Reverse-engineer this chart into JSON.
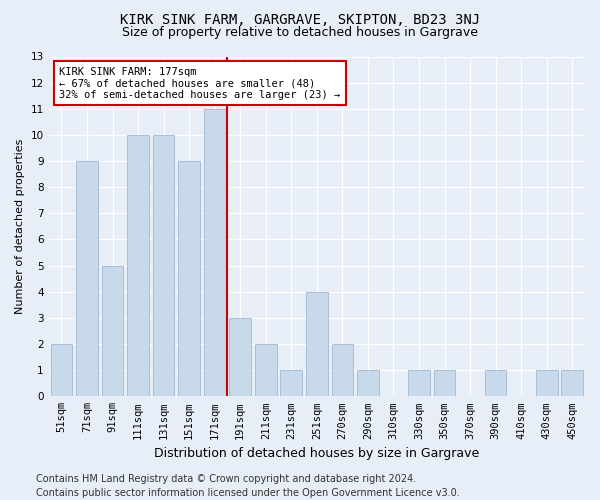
{
  "title": "KIRK SINK FARM, GARGRAVE, SKIPTON, BD23 3NJ",
  "subtitle": "Size of property relative to detached houses in Gargrave",
  "xlabel": "Distribution of detached houses by size in Gargrave",
  "ylabel": "Number of detached properties",
  "categories": [
    "51sqm",
    "71sqm",
    "91sqm",
    "111sqm",
    "131sqm",
    "151sqm",
    "171sqm",
    "191sqm",
    "211sqm",
    "231sqm",
    "251sqm",
    "270sqm",
    "290sqm",
    "310sqm",
    "330sqm",
    "350sqm",
    "370sqm",
    "390sqm",
    "410sqm",
    "430sqm",
    "450sqm"
  ],
  "values": [
    2,
    9,
    5,
    10,
    10,
    9,
    11,
    3,
    2,
    1,
    4,
    2,
    1,
    0,
    1,
    1,
    0,
    1,
    0,
    1,
    1
  ],
  "bar_color": "#c9d9ec",
  "bar_edge_color": "#a0b8d0",
  "vline_x": 6.5,
  "vline_color": "#cc0000",
  "annotation_text": "KIRK SINK FARM: 177sqm\n← 67% of detached houses are smaller (48)\n32% of semi-detached houses are larger (23) →",
  "annotation_box_color": "#ffffff",
  "annotation_box_edge": "#cc0000",
  "ylim": [
    0,
    13
  ],
  "yticks": [
    0,
    1,
    2,
    3,
    4,
    5,
    6,
    7,
    8,
    9,
    10,
    11,
    12,
    13
  ],
  "footer": "Contains HM Land Registry data © Crown copyright and database right 2024.\nContains public sector information licensed under the Open Government Licence v3.0.",
  "bg_color": "#e8eef7",
  "plot_bg_color": "#e8eef7",
  "grid_color": "#ffffff",
  "title_fontsize": 10,
  "subtitle_fontsize": 9,
  "xlabel_fontsize": 9,
  "ylabel_fontsize": 8,
  "tick_fontsize": 7.5,
  "footer_fontsize": 7
}
